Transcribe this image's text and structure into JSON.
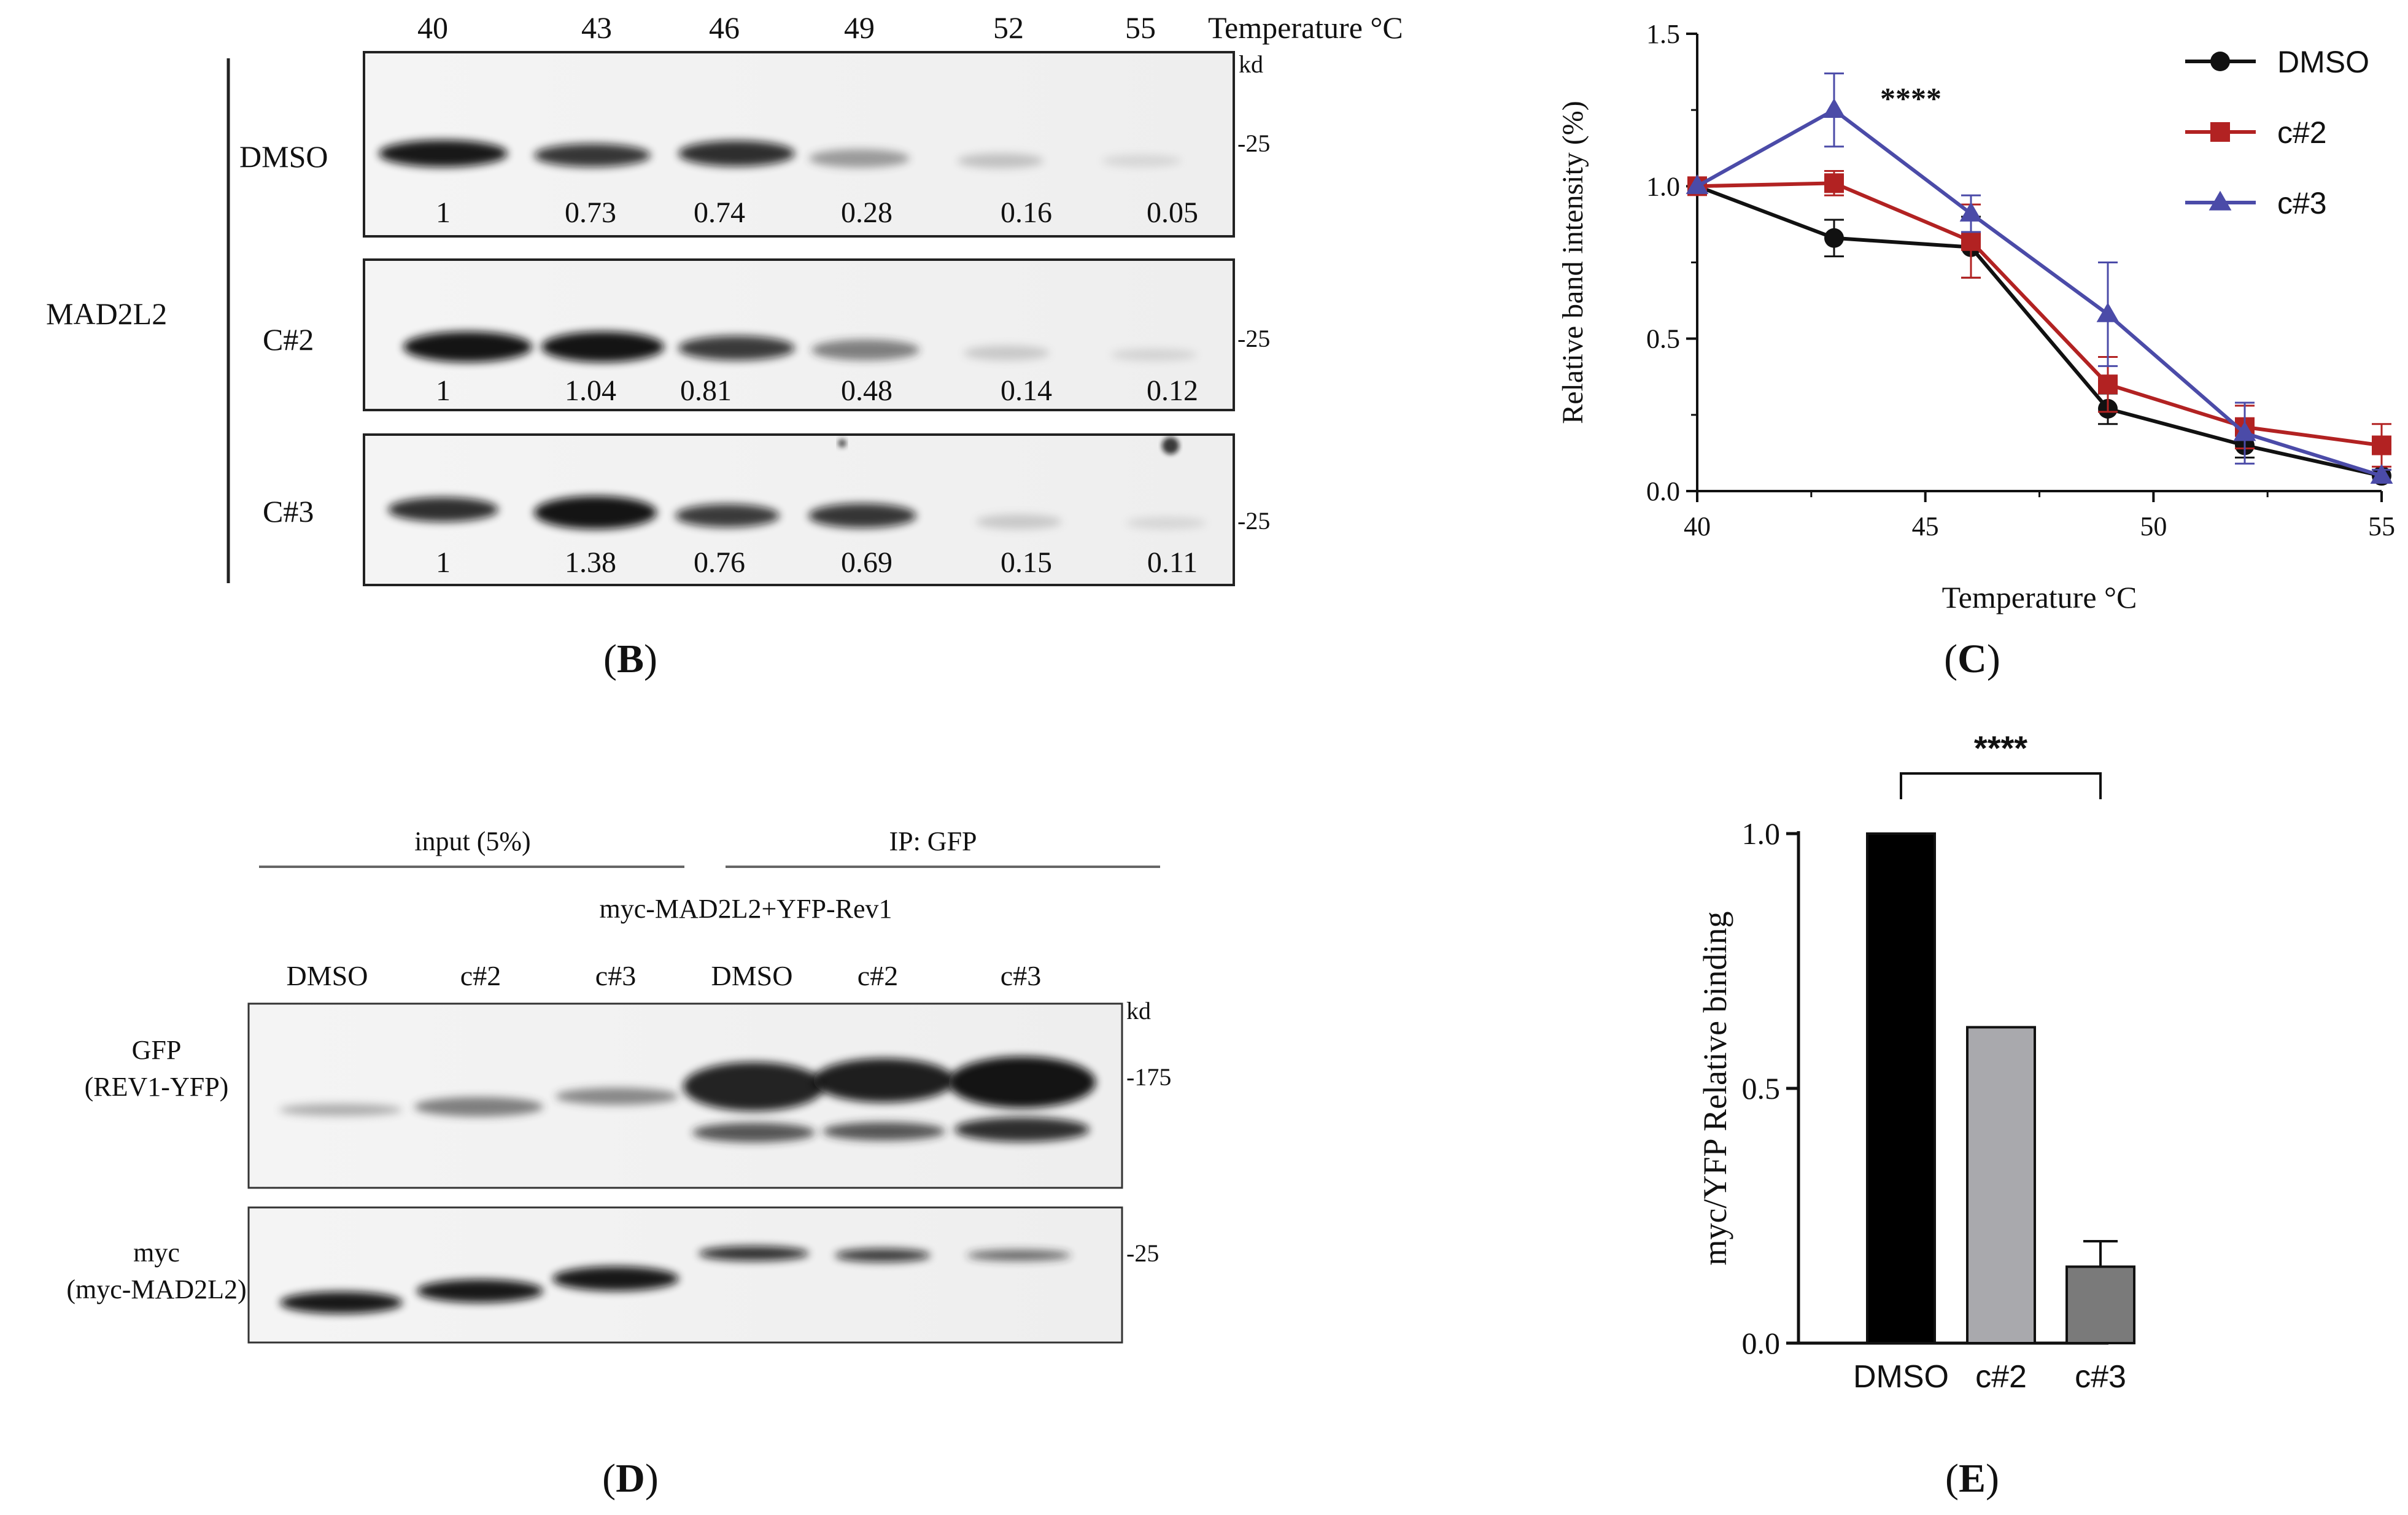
{
  "panel_b": {
    "letter": "B",
    "temperatures": [
      "40",
      "43",
      "46",
      "49",
      "52",
      "55"
    ],
    "temp_axis_label": "Temperature °C",
    "kd_label": "kd",
    "protein_label": "MAD2L2",
    "blots": [
      {
        "label": "DMSO",
        "marker": "-25",
        "values": [
          "1",
          "0.73",
          "0.74",
          "0.28",
          "0.16",
          "0.05"
        ]
      },
      {
        "label": "C#2",
        "marker": "-25",
        "values": [
          "1",
          "1.04",
          "0.81",
          "0.48",
          "0.14",
          "0.12"
        ]
      },
      {
        "label": "C#3",
        "marker": "-25",
        "values": [
          "1",
          "1.38",
          "0.76",
          "0.69",
          "0.15",
          "0.11"
        ]
      }
    ]
  },
  "panel_d": {
    "letter": "D",
    "group_input": "input (5%)",
    "group_ip": "IP: GFP",
    "construct": "myc-MAD2L2+YFP-Rev1",
    "lanes": [
      "DMSO",
      "c#2",
      "c#3",
      "DMSO",
      "c#2",
      "c#3"
    ],
    "kd_label": "kd",
    "blots": [
      {
        "label_line1": "GFP",
        "label_line2": "(REV1-YFP)",
        "marker": "-175"
      },
      {
        "label_line1": "myc",
        "label_line2": "(myc-MAD2L2)",
        "marker": "-25"
      }
    ]
  },
  "chart_data": [
    {
      "panel": "C",
      "type": "line",
      "xlabel": "Temperature °C",
      "ylabel": "Relative band intensity (%)",
      "xlim": [
        40,
        55
      ],
      "ylim": [
        0,
        1.5
      ],
      "xticks": [
        40,
        45,
        50,
        55
      ],
      "yticks": [
        "0.0",
        "0.5",
        "1.0",
        "1.5"
      ],
      "x": [
        40,
        43,
        46,
        49,
        52,
        55
      ],
      "legend_position": "top-right",
      "annotation": {
        "text": "****",
        "x": 43
      },
      "series": [
        {
          "name": "DMSO",
          "color": "#111111",
          "marker": "circle",
          "values": [
            1.0,
            0.83,
            0.8,
            0.27,
            0.15,
            0.05
          ],
          "errors": [
            0.01,
            0.06,
            0.1,
            0.05,
            0.04,
            0.02
          ]
        },
        {
          "name": "c#2",
          "color": "#b22222",
          "marker": "square",
          "values": [
            1.0,
            1.01,
            0.82,
            0.35,
            0.21,
            0.15
          ],
          "errors": [
            0.01,
            0.04,
            0.12,
            0.09,
            0.07,
            0.07
          ]
        },
        {
          "name": "c#3",
          "color": "#4b4ba8",
          "marker": "triangle",
          "values": [
            1.0,
            1.25,
            0.91,
            0.58,
            0.19,
            0.05
          ],
          "errors": [
            0.01,
            0.12,
            0.06,
            0.17,
            0.1,
            0.02
          ]
        }
      ]
    },
    {
      "panel": "E",
      "type": "bar",
      "ylabel": "myc/YFP Relative binding",
      "ylim": [
        0,
        1.0
      ],
      "yticks": [
        "0.0",
        "0.5",
        "1.0"
      ],
      "categories": [
        "DMSO",
        "c#2",
        "c#3"
      ],
      "values": [
        1.0,
        0.62,
        0.15
      ],
      "errors": [
        0,
        0,
        0.05
      ],
      "colors": [
        "#000000",
        "#a9a9ad",
        "#7a7a7a"
      ],
      "significance": {
        "text": "****",
        "between": [
          0,
          2
        ]
      }
    }
  ]
}
